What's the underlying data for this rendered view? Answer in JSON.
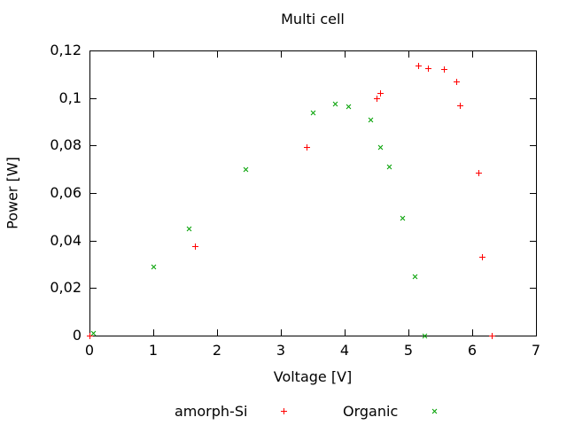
{
  "chart_data": {
    "type": "scatter",
    "title": "Multi cell",
    "xlabel": "Voltage [V]",
    "ylabel": "Power [W]",
    "xlim": [
      0,
      7
    ],
    "ylim": [
      0,
      0.12
    ],
    "grid": false,
    "legend_position": "below-plot",
    "background_color": "#ffffff",
    "border_color": "#000000",
    "x_ticks": {
      "values": [
        0,
        1,
        2,
        3,
        4,
        5,
        6,
        7
      ],
      "labels": [
        "0",
        "1",
        "2",
        "3",
        "4",
        "5",
        "6",
        "7"
      ]
    },
    "y_ticks": {
      "values": [
        0,
        0.02,
        0.04,
        0.06,
        0.08,
        0.1,
        0.12
      ],
      "labels": [
        "0",
        "0,02",
        "0,04",
        "0,06",
        "0,08",
        "0,1",
        "0,12"
      ]
    },
    "series": [
      {
        "name": "amorph-Si",
        "marker": "plus",
        "color": "#ff0000",
        "points": [
          [
            0,
            0
          ],
          [
            1.65,
            0.0375
          ],
          [
            3.4,
            0.0795
          ],
          [
            4.5,
            0.1
          ],
          [
            4.55,
            0.102
          ],
          [
            5.15,
            0.1135
          ],
          [
            5.3,
            0.1125
          ],
          [
            5.55,
            0.112
          ],
          [
            5.75,
            0.107
          ],
          [
            5.8,
            0.097
          ],
          [
            6.1,
            0.0685
          ],
          [
            6.15,
            0.033
          ],
          [
            6.3,
            0
          ]
        ]
      },
      {
        "name": "Organic",
        "marker": "cross",
        "color": "#00a000",
        "points": [
          [
            0.05,
            0.001
          ],
          [
            1.0,
            0.029
          ],
          [
            1.55,
            0.045
          ],
          [
            2.45,
            0.07
          ],
          [
            3.5,
            0.094
          ],
          [
            3.85,
            0.0975
          ],
          [
            4.05,
            0.0965
          ],
          [
            4.4,
            0.091
          ],
          [
            4.55,
            0.0795
          ],
          [
            4.7,
            0.071
          ],
          [
            4.9,
            0.0495
          ],
          [
            5.1,
            0.025
          ],
          [
            5.25,
            0
          ]
        ]
      }
    ]
  }
}
